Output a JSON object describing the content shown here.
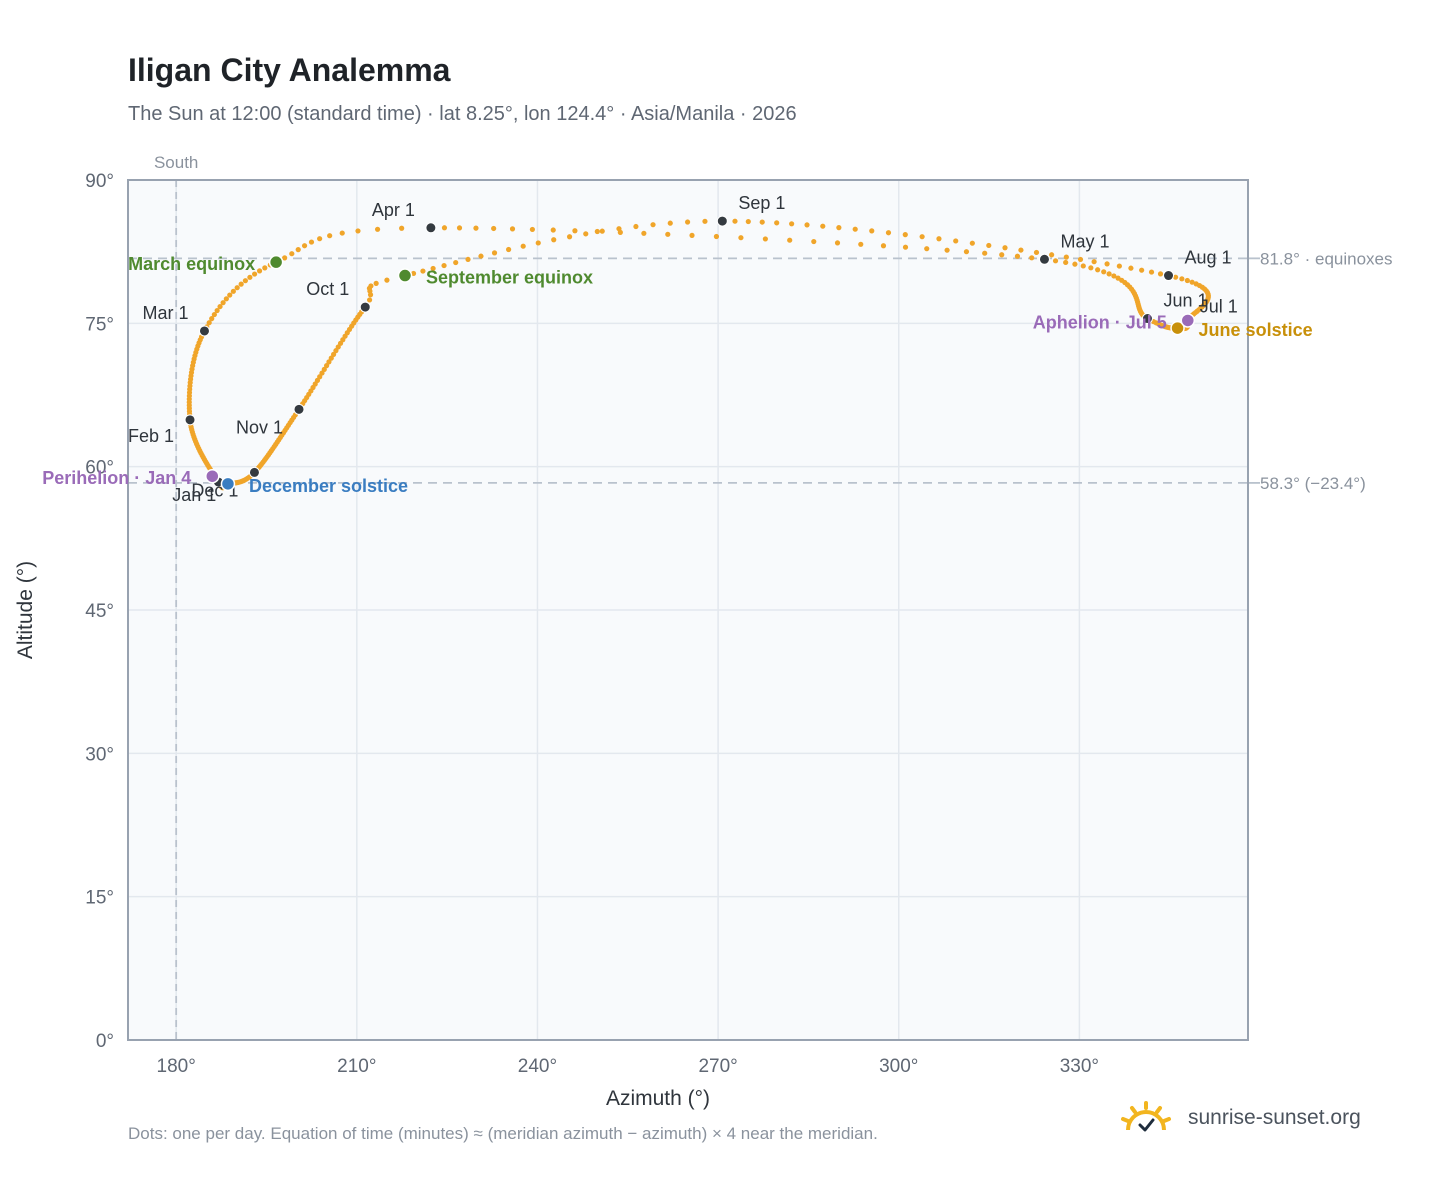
{
  "header": {
    "title": "Iligan City Analemma",
    "subtitle": "The Sun at 12:00 (standard time) · lat 8.25°, lon 124.4° · Asia/Manila · 2026"
  },
  "footer": {
    "note": "Dots: one per day. Equation of time (minutes) ≈ (meridian azimuth − azimuth) × 4 near the meridian.",
    "brand": "sunrise-sunset.org"
  },
  "colors": {
    "curve": "#f0a52a",
    "month_marker": "#343a40",
    "equinox": "#4f8a2f",
    "december_solstice": "#3a7dc1",
    "june_solstice": "#c8900a",
    "apsis": "#9a6bb8",
    "plot_bg": "#f8fafc",
    "grid": "#e3e8ee",
    "reference_line": "#b9c2cd"
  },
  "chart_data": {
    "type": "scatter",
    "xlabel": "Azimuth (°)",
    "ylabel": "Altitude (°)",
    "xlim": [
      172,
      358
    ],
    "ylim": [
      0,
      90
    ],
    "xticks": [
      180,
      210,
      240,
      270,
      300,
      330
    ],
    "xtick_labels": [
      "180°",
      "210°",
      "240°",
      "270°",
      "300°",
      "330°"
    ],
    "yticks": [
      0,
      15,
      30,
      45,
      60,
      75,
      90
    ],
    "ytick_labels": [
      "0°",
      "15°",
      "30°",
      "45°",
      "60°",
      "75°",
      "90°"
    ],
    "grid": true,
    "meridian": {
      "x": 180,
      "label": "South"
    },
    "reference_lines": [
      {
        "y": 81.8,
        "label": "81.8° · equinoxes"
      },
      {
        "y": 58.3,
        "label": "58.3° (−23.4°)"
      }
    ],
    "series": [
      {
        "name": "daily",
        "style": "dots",
        "knots": [
          {
            "day": 1,
            "x": 187.0,
            "y": 58.4
          },
          {
            "day": 32,
            "x": 182.3,
            "y": 64.9
          },
          {
            "day": 60,
            "x": 184.7,
            "y": 74.2
          },
          {
            "day": 79,
            "x": 196.6,
            "y": 81.4
          },
          {
            "day": 91,
            "x": 222.3,
            "y": 85.0
          },
          {
            "day": 121,
            "x": 324.2,
            "y": 81.7
          },
          {
            "day": 152,
            "x": 341.3,
            "y": 75.5
          },
          {
            "day": 172,
            "x": 346.3,
            "y": 74.5
          },
          {
            "day": 182,
            "x": 348.0,
            "y": 75.2
          },
          {
            "day": 213,
            "x": 344.8,
            "y": 80.0
          },
          {
            "day": 244,
            "x": 270.7,
            "y": 85.7
          },
          {
            "day": 266,
            "x": 218.0,
            "y": 80.0
          },
          {
            "day": 274,
            "x": 211.4,
            "y": 76.7
          },
          {
            "day": 305,
            "x": 200.4,
            "y": 66.0
          },
          {
            "day": 335,
            "x": 193.0,
            "y": 59.4
          },
          {
            "day": 355,
            "x": 188.6,
            "y": 58.2
          },
          {
            "day": 366,
            "x": 187.0,
            "y": 58.4
          }
        ]
      }
    ],
    "month_markers": [
      {
        "label": "Jan 1",
        "x": 187.0,
        "y": 58.4
      },
      {
        "label": "Feb 1",
        "x": 182.3,
        "y": 64.9
      },
      {
        "label": "Mar 1",
        "x": 184.7,
        "y": 74.2
      },
      {
        "label": "Apr 1",
        "x": 222.3,
        "y": 85.0
      },
      {
        "label": "May 1",
        "x": 324.2,
        "y": 81.7
      },
      {
        "label": "Jun 1",
        "x": 341.3,
        "y": 75.5
      },
      {
        "label": "Jul 1",
        "x": 348.0,
        "y": 75.2
      },
      {
        "label": "Aug 1",
        "x": 344.8,
        "y": 80.0
      },
      {
        "label": "Sep 1",
        "x": 270.7,
        "y": 85.7
      },
      {
        "label": "Oct 1",
        "x": 211.4,
        "y": 76.7
      },
      {
        "label": "Nov 1",
        "x": 200.4,
        "y": 66.0
      },
      {
        "label": "Dec 1",
        "x": 193.0,
        "y": 59.4
      }
    ],
    "events": [
      {
        "label": "March equinox",
        "kind": "equinox",
        "x": 196.6,
        "y": 81.4
      },
      {
        "label": "September equinox",
        "kind": "equinox",
        "x": 218.0,
        "y": 80.0
      },
      {
        "label": "December solstice",
        "kind": "december_solstice",
        "x": 188.6,
        "y": 58.2
      },
      {
        "label": "June solstice",
        "kind": "june_solstice",
        "x": 346.3,
        "y": 74.5
      },
      {
        "label": "Perihelion · Jan 4",
        "kind": "apsis",
        "x": 186.0,
        "y": 59.0
      },
      {
        "label": "Aphelion · Jul 5",
        "kind": "apsis",
        "x": 348.0,
        "y": 75.3
      }
    ]
  }
}
